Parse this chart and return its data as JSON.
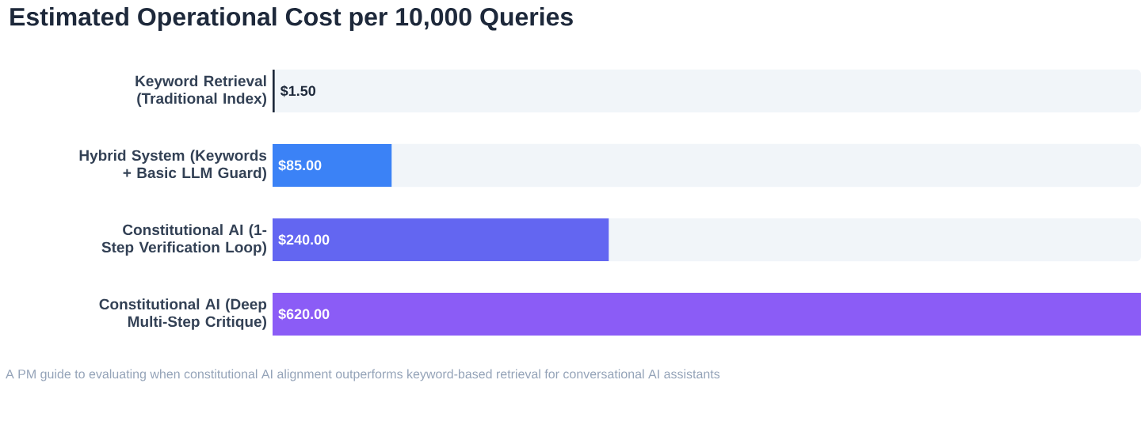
{
  "chart_data": {
    "type": "bar",
    "orientation": "horizontal",
    "title": "Estimated Operational Cost per 10,000 Queries",
    "categories": [
      "Keyword Retrieval (Traditional Index)",
      "Hybrid System (Keywords + Basic LLM Guard)",
      "Constitutional AI (1-Step Verification Loop)",
      "Constitutional AI (Deep Multi-Step Critique)"
    ],
    "values": [
      1.5,
      85,
      240,
      620
    ],
    "colors": [
      "#1e293b",
      "#3b82f6",
      "#6366f1",
      "#8b5cf6"
    ],
    "value_labels": [
      "$1.50",
      "$85.00",
      "$240.00",
      "$620.00"
    ],
    "xlim": [
      0,
      620
    ],
    "tick_labels": "y",
    "annotations": [
      "A PM guide to evaluating when constitutional AI alignment outperforms keyword-based retrieval for conversational AI assistants"
    ]
  }
}
